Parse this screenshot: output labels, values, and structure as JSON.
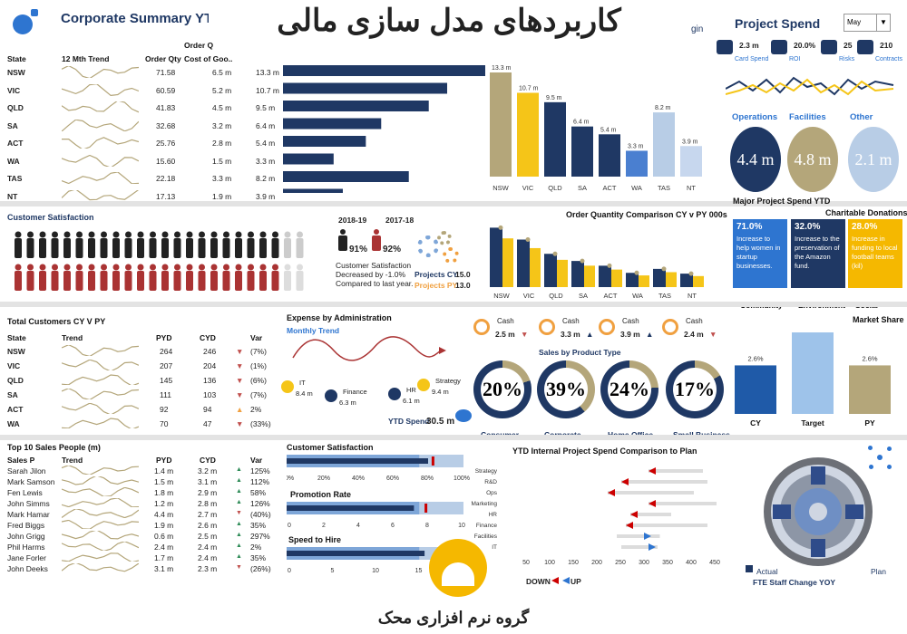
{
  "header": {
    "title": "کاربردهای مدل سازی مالی",
    "left_title": "Corporate Summary YTD",
    "right_title": "Project Spend",
    "login_fragment": "gin",
    "month_select": "May"
  },
  "region": {
    "headers": {
      "state": "State",
      "trend": "12 Mth Trend",
      "qty": "Order Qty",
      "cost": "Cost of Goo..",
      "qty_top": "Order Q"
    },
    "rows": [
      {
        "state": "NSW",
        "qty": "71.58",
        "cost": "6.5 m",
        "value": "13.3 m",
        "bar": 13.3
      },
      {
        "state": "VIC",
        "qty": "60.59",
        "cost": "5.2 m",
        "value": "10.7 m",
        "bar": 10.7
      },
      {
        "state": "QLD",
        "qty": "41.83",
        "cost": "4.5 m",
        "value": "9.5 m",
        "bar": 9.5
      },
      {
        "state": "SA",
        "qty": "32.68",
        "cost": "3.2 m",
        "value": "6.4 m",
        "bar": 6.4
      },
      {
        "state": "ACT",
        "qty": "25.76",
        "cost": "2.8 m",
        "value": "5.4 m",
        "bar": 5.4
      },
      {
        "state": "WA",
        "qty": "15.60",
        "cost": "1.5 m",
        "value": "3.3 m",
        "bar": 3.3
      },
      {
        "state": "TAS",
        "qty": "22.18",
        "cost": "3.3 m",
        "value": "8.2 m",
        "bar": 8.2
      },
      {
        "state": "NT",
        "qty": "17.13",
        "cost": "1.9 m",
        "value": "3.9 m",
        "bar": 3.9
      }
    ]
  },
  "chart_data": [
    {
      "type": "bar",
      "categories": [
        "NSW",
        "VIC",
        "QLD",
        "SA",
        "ACT",
        "WA",
        "TAS",
        "NT"
      ],
      "values": [
        13.3,
        10.7,
        9.5,
        6.4,
        5.4,
        3.3,
        8.2,
        3.9
      ],
      "labels": [
        "13.3 m",
        "10.7 m",
        "9.5 m",
        "6.4 m",
        "5.4 m",
        "3.3 m",
        "8.2 m",
        "3.9 m"
      ],
      "colors": [
        "#b4a67a",
        "#f5c518",
        "#1f3864",
        "#1f3864",
        "#1f3864",
        "#4a7fd0",
        "#b8cde6",
        "#c7d7ee"
      ]
    },
    {
      "type": "bar",
      "title": "Order Quantity Comparison CY v PY 000s",
      "categories": [
        "NSW",
        "VIC",
        "QLD",
        "SA",
        "ACT",
        "WA",
        "TAS",
        "NT"
      ],
      "series": [
        {
          "values": [
            75,
            60,
            42,
            33,
            27,
            18,
            23,
            17
          ]
        }
      ],
      "ylim": [
        0,
        80
      ]
    },
    {
      "type": "bar",
      "title": "Market Share",
      "categories": [
        "CY",
        "Target",
        "PY"
      ],
      "values": [
        2.6,
        2.8,
        2.6
      ],
      "labels": [
        "2.6%",
        "2.8%",
        "2.6%"
      ]
    },
    {
      "type": "bar",
      "title": "YTD Internal Project Spend Comparison to Plan",
      "categories": [
        "Strategy",
        "R&D",
        "Ops",
        "Marketing",
        "HR",
        "Finance",
        "Facilities",
        "IT"
      ],
      "x_ticks": [
        "50",
        "100",
        "150",
        "200",
        "250",
        "300",
        "350",
        "400",
        "450"
      ]
    }
  ],
  "project": {
    "kpis": [
      {
        "value": "2.3 m",
        "label": "Card Spend"
      },
      {
        "value": "20.0%",
        "label": "ROI"
      },
      {
        "value": "25",
        "label": "Risks"
      },
      {
        "value": "210",
        "label": "Contracts"
      }
    ],
    "circles": [
      {
        "label": "Operations",
        "value": "4.4 m",
        "color": "#1f3864",
        "text": "#fff"
      },
      {
        "label": "Facilities",
        "value": "4.8 m",
        "color": "#b4a67a",
        "text": "#fff"
      },
      {
        "label": "Other",
        "value": "2.1 m",
        "color": "#b8cde6",
        "text": "#fff"
      }
    ],
    "major_title": "Major Project Spend YTD",
    "donations_title": "Charitable Donations",
    "donations": [
      {
        "pct": "71.0%",
        "text": "Increase to help women in startup businesses.",
        "cat": "Community",
        "color": "#2e75d0"
      },
      {
        "pct": "32.0%",
        "text": "Increase to the preservation of the Amazon fund.",
        "cat": "Environment",
        "color": "#1f3864"
      },
      {
        "pct": "28.0%",
        "text": "Increase in funding to local football teams (kil)",
        "cat": "Social",
        "color": "#f5b800"
      }
    ]
  },
  "satisfaction": {
    "title": "Customer Satisfaction",
    "y1": "2018-19",
    "y2": "2017-18",
    "p1": "91%",
    "p2": "92%",
    "note1": "Customer Satisfaction",
    "note2": "Decreased by -1.0%",
    "note3": "Compared to last year.",
    "cy_label": "Projects CY",
    "cy_val": "15.0",
    "py_label": "Projects PY",
    "py_val": "13.0"
  },
  "customers": {
    "title": "Total Customers CY V PY",
    "h_state": "State",
    "h_trend": "Trend",
    "h_pyd": "PYD",
    "h_cyd": "CYD",
    "h_var": "Var",
    "rows": [
      {
        "state": "NSW",
        "pyd": "264",
        "cyd": "246",
        "var": "(7%)"
      },
      {
        "state": "VIC",
        "pyd": "207",
        "cyd": "204",
        "var": "(1%)"
      },
      {
        "state": "QLD",
        "pyd": "145",
        "cyd": "136",
        "var": "(6%)"
      },
      {
        "state": "SA",
        "pyd": "111",
        "cyd": "103",
        "var": "(7%)"
      },
      {
        "state": "ACT",
        "pyd": "92",
        "cyd": "94",
        "var": "2%"
      },
      {
        "state": "WA",
        "pyd": "70",
        "cyd": "47",
        "var": "(33%)"
      }
    ]
  },
  "expense": {
    "title": "Expense by Administration",
    "subtitle": "Monthly Trend",
    "items": [
      {
        "name": "IT",
        "value": "8.4 m"
      },
      {
        "name": "Finance",
        "value": "6.3 m"
      },
      {
        "name": "HR",
        "value": "6.1 m"
      },
      {
        "name": "Strategy",
        "value": "9.4 m"
      }
    ],
    "ytd_label": "YTD Spend",
    "ytd_value": "30.5 m"
  },
  "cash": {
    "items": [
      {
        "label": "Cash",
        "value": "2.5 m"
      },
      {
        "label": "Cash",
        "value": "3.3 m"
      },
      {
        "label": "Cash",
        "value": "3.9 m"
      },
      {
        "label": "Cash",
        "value": "2.4 m"
      }
    ],
    "product_title": "Sales by Product Type",
    "products": [
      {
        "pct": "20%",
        "name": "Consumer",
        "frac": 0.2
      },
      {
        "pct": "39%",
        "name": "Corporate",
        "frac": 0.39
      },
      {
        "pct": "24%",
        "name": "Home Office",
        "frac": 0.24
      },
      {
        "pct": "17%",
        "name": "Small Business",
        "frac": 0.17
      }
    ]
  },
  "market": {
    "title": "Market Share"
  },
  "sales": {
    "title": "Top 10 Sales People (m)",
    "h_name": "Sales P",
    "h_trend": "Trend",
    "h_pyd": "PYD",
    "h_cyd": "CYD",
    "h_var": "Var",
    "rows": [
      {
        "name": "Sarah Jilon",
        "pyd": "1.4 m",
        "cyd": "3.2 m",
        "var": "125%"
      },
      {
        "name": "Mark Samson",
        "pyd": "1.5 m",
        "cyd": "3.1 m",
        "var": "112%"
      },
      {
        "name": "Fen Lewis",
        "pyd": "1.8 m",
        "cyd": "2.9 m",
        "var": "58%"
      },
      {
        "name": "John Simms",
        "pyd": "1.2 m",
        "cyd": "2.8 m",
        "var": "126%"
      },
      {
        "name": "Mark Hamar",
        "pyd": "4.4 m",
        "cyd": "2.7 m",
        "var": "(40%)"
      },
      {
        "name": "Fred Biggs",
        "pyd": "1.9 m",
        "cyd": "2.6 m",
        "var": "35%"
      },
      {
        "name": "John Grigg",
        "pyd": "0.6 m",
        "cyd": "2.5 m",
        "var": "297%"
      },
      {
        "name": "Phil Harms",
        "pyd": "2.4 m",
        "cyd": "2.4 m",
        "var": "2%"
      },
      {
        "name": "Jane Forler",
        "pyd": "1.7 m",
        "cyd": "2.4 m",
        "var": "35%"
      },
      {
        "name": "John Deeks",
        "pyd": "3.1 m",
        "cyd": "2.3 m",
        "var": "(26%)"
      }
    ]
  },
  "bullets": {
    "sat_title": "Customer Satisfaction",
    "sat_ticks": [
      "0%",
      "20%",
      "40%",
      "60%",
      "80%",
      "100%"
    ],
    "promo_title": "Promotion Rate",
    "promo_ticks": [
      "0",
      "2",
      "4",
      "6",
      "8",
      "10"
    ],
    "speed_title": "Speed to Hire",
    "speed_ticks": [
      "0",
      "5",
      "10",
      "15",
      "20"
    ]
  },
  "internal": {
    "title": "YTD Internal Project Spend Comparison to Plan",
    "down": "DOWN",
    "up": "UP"
  },
  "fte": {
    "actual": "Actual",
    "plan": "Plan",
    "title": "FTE Staff Change YOY"
  },
  "brand": {
    "name": "گروه نرم افزاری محک"
  }
}
